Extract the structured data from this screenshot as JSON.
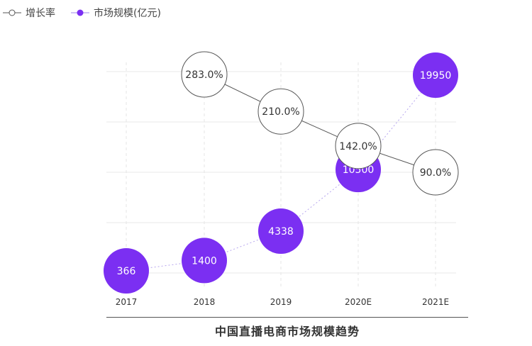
{
  "chart_data": {
    "type": "line",
    "title": "中国直播电商市场规模趋势",
    "categories": [
      "2017",
      "2018",
      "2019",
      "2020E",
      "2021E"
    ],
    "series": [
      {
        "name": "增长率",
        "values": [
          null,
          283.0,
          210.0,
          142.0,
          90.0
        ],
        "labels": [
          "",
          "283.0%",
          "210.0%",
          "142.0%",
          "90.0%"
        ],
        "color": "#555555",
        "marker_fill": "#ffffff"
      },
      {
        "name": "市场规模(亿元)",
        "values": [
          366,
          1400,
          4338,
          10500,
          19950
        ],
        "labels": [
          "366",
          "1400",
          "4338",
          "10500",
          "19950"
        ],
        "color": "#7b2ff2",
        "marker_fill": "#7b2ff2",
        "line_color": "#b7a6ee"
      }
    ],
    "legend_position": "top-left",
    "grid": true
  }
}
